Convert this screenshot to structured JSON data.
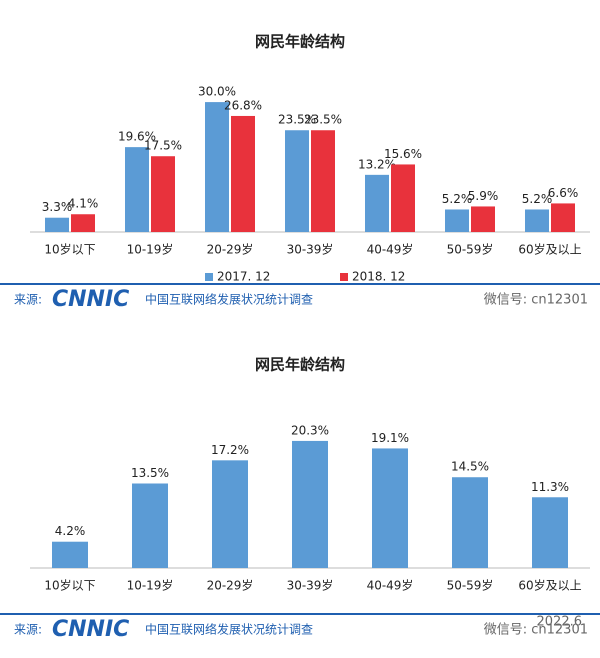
{
  "chart_data": [
    {
      "type": "bar",
      "title": "网民年龄结构",
      "categories": [
        "10岁以下",
        "10-19岁",
        "20-29岁",
        "30-39岁",
        "40-49岁",
        "50-59岁",
        "60岁及以上"
      ],
      "series": [
        {
          "name": "2017. 12",
          "color": "#5b9bd5",
          "values": [
            3.3,
            19.6,
            30.0,
            23.5,
            13.2,
            5.2,
            5.2
          ],
          "value_labels": [
            "3.3%",
            "19.6%",
            "30.0%",
            "23.5%",
            "13.2%",
            "5.2%",
            "5.2%"
          ]
        },
        {
          "name": "2018. 12",
          "color": "#e8323c",
          "values": [
            4.1,
            17.5,
            26.8,
            23.5,
            15.6,
            5.9,
            6.6
          ],
          "value_labels": [
            "4.1%",
            "17.5%",
            "26.8%",
            "23.5%",
            "15.6%",
            "5.9%",
            "6.6%"
          ]
        }
      ],
      "legend": "bottom"
    },
    {
      "type": "bar",
      "title": "网民年龄结构",
      "categories": [
        "10岁以下",
        "10-19岁",
        "20-29岁",
        "30-39岁",
        "40-49岁",
        "50-59岁",
        "60岁及以上"
      ],
      "values": [
        4.2,
        13.5,
        17.2,
        20.3,
        19.1,
        14.5,
        11.3
      ],
      "value_labels": [
        "4.2%",
        "13.5%",
        "17.2%",
        "20.3%",
        "19.1%",
        "14.5%",
        "11.3%"
      ],
      "color": "#5b9bd5"
    }
  ],
  "footers": [
    {
      "source_label": "来源:",
      "logo": "CNNIC",
      "source": "中国互联网络发展状况统计调查",
      "wechat": "微信号: cn12301"
    },
    {
      "source_label": "来源:",
      "logo": "CNNIC",
      "source": "中国互联网络发展状况统计调查",
      "wechat": "微信号: cn12301",
      "date": "2022.6"
    }
  ]
}
